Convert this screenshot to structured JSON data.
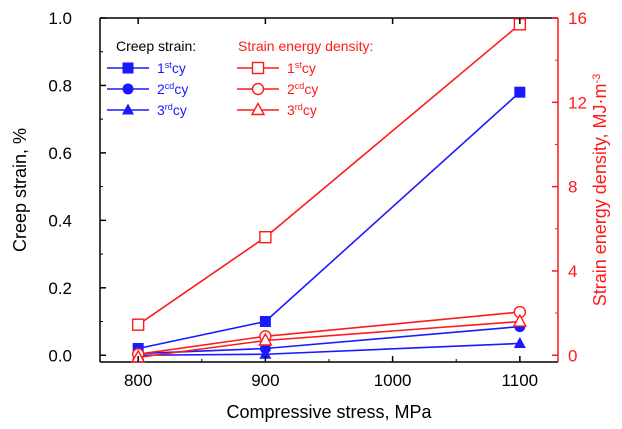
{
  "chart_data": {
    "type": "line",
    "x": [
      800,
      900,
      1100
    ],
    "xlabel": "Compressive stress, MPa",
    "xlim": [
      770,
      1130
    ],
    "xticks": [
      "800",
      "900",
      "1000",
      "1100"
    ],
    "ylabel": "Creep strain, %",
    "ylim": [
      -0.02,
      1.0
    ],
    "yticks": [
      "0.0",
      "0.2",
      "0.4",
      "0.6",
      "0.8",
      "1.0"
    ],
    "y2label": "Strain energy density, MJ·m",
    "y2label_sup": "-3",
    "y2lim": [
      -0.32,
      16
    ],
    "y2ticks": [
      "0",
      "4",
      "8",
      "12",
      "16"
    ],
    "grid": false,
    "colors": {
      "creep": "#1a1aff",
      "energy": "#ff1a1a",
      "axis": "#000000"
    },
    "legend_titles": {
      "creep": "Creep strain:",
      "energy": "Strain energy density:"
    },
    "series": [
      {
        "name": "1st cy",
        "label_base": "1",
        "label_sup": "st",
        "label_tail": "cy",
        "axis": "left",
        "group": "creep",
        "marker": "square",
        "values": [
          0.02,
          0.1,
          0.78
        ]
      },
      {
        "name": "2cd cy",
        "label_base": "2",
        "label_sup": "cd",
        "label_tail": "cy",
        "axis": "left",
        "group": "creep",
        "marker": "circle",
        "values": [
          0.005,
          0.02,
          0.085
        ]
      },
      {
        "name": "3rd cy",
        "label_base": "3",
        "label_sup": "rd",
        "label_tail": "cy",
        "axis": "left",
        "group": "creep",
        "marker": "triangle",
        "values": [
          0.0,
          0.003,
          0.035
        ]
      },
      {
        "name": "1st cy",
        "label_base": "1",
        "label_sup": "st",
        "label_tail": "cy",
        "axis": "right",
        "group": "energy",
        "marker": "square-open",
        "values": [
          1.45,
          5.6,
          15.7
        ]
      },
      {
        "name": "2cd cy",
        "label_base": "2",
        "label_sup": "cd",
        "label_tail": "cy",
        "axis": "right",
        "group": "energy",
        "marker": "circle-open",
        "values": [
          0.05,
          0.9,
          2.05
        ]
      },
      {
        "name": "3rd cy",
        "label_base": "3",
        "label_sup": "rd",
        "label_tail": "cy",
        "axis": "right",
        "group": "energy",
        "marker": "triangle-open",
        "values": [
          -0.1,
          0.7,
          1.6
        ]
      }
    ]
  }
}
